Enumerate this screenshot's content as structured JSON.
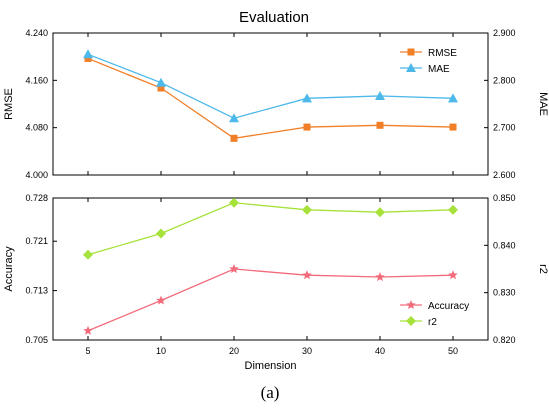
{
  "title": "Evaluation",
  "caption": "(a)",
  "chart_data": [
    {
      "type": "line",
      "x": [
        5,
        10,
        20,
        30,
        40,
        50
      ],
      "xtick_labels": [
        "5",
        "10",
        "20",
        "30",
        "40",
        "50"
      ],
      "left_axis": {
        "label": "RMSE",
        "ylim": [
          4.0,
          4.24
        ],
        "ticks": [
          4.0,
          4.08,
          4.16,
          4.24
        ],
        "tick_labels": [
          "4.000",
          "4.080",
          "4.160",
          "4.240"
        ]
      },
      "right_axis": {
        "label": "MAE",
        "ylim": [
          2.6,
          2.9
        ],
        "ticks": [
          2.6,
          2.7,
          2.8,
          2.9
        ],
        "tick_labels": [
          "2.600",
          "2.700",
          "2.800",
          "2.900"
        ]
      },
      "series": [
        {
          "name": "RMSE",
          "axis": "left",
          "marker": "square",
          "color": "#F07F27",
          "values": [
            4.197,
            4.147,
            4.062,
            4.081,
            4.084,
            4.081
          ]
        },
        {
          "name": "MAE",
          "axis": "right",
          "marker": "triangle",
          "color": "#4DB8EA",
          "values": [
            2.855,
            2.795,
            2.72,
            2.762,
            2.767,
            2.762
          ]
        }
      ],
      "legend_position": "top-right"
    },
    {
      "type": "line",
      "x": [
        5,
        10,
        20,
        30,
        40,
        50
      ],
      "xtick_labels": [
        "5",
        "10",
        "20",
        "30",
        "40",
        "50"
      ],
      "xlabel": "Dimension",
      "left_axis": {
        "label": "Accuracy",
        "ylim": [
          0.705,
          0.728
        ],
        "ticks": [
          0.705,
          0.713,
          0.721,
          0.728
        ],
        "tick_labels": [
          "0.705",
          "0.713",
          "0.721",
          "0.728"
        ]
      },
      "right_axis": {
        "label": "r2",
        "ylim": [
          0.82,
          0.85
        ],
        "ticks": [
          0.82,
          0.83,
          0.84,
          0.85
        ],
        "tick_labels": [
          "0.820",
          "0.830",
          "0.840",
          "0.850"
        ]
      },
      "series": [
        {
          "name": "Accuracy",
          "axis": "left",
          "marker": "star",
          "color": "#F26B7A",
          "values": [
            0.7065,
            0.7114,
            0.7165,
            0.7155,
            0.7152,
            0.7155
          ]
        },
        {
          "name": "r2",
          "axis": "right",
          "marker": "diamond",
          "color": "#A6E23A",
          "values": [
            0.838,
            0.8425,
            0.849,
            0.8475,
            0.847,
            0.8475
          ]
        }
      ],
      "legend_position": "bottom-right"
    }
  ]
}
